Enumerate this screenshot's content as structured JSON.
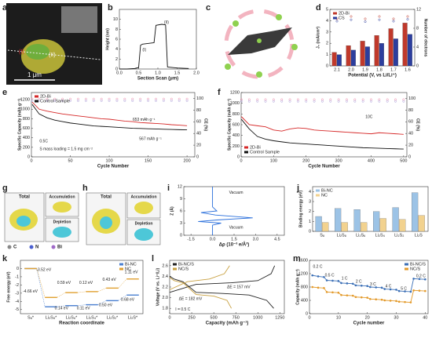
{
  "images": [
    {
      "label": "a",
      "texts": [
        "1 μm",
        "(I)",
        "(II)"
      ]
    },
    {
      "label": "c"
    },
    {
      "label": "g",
      "texts": [
        "Total",
        "Accumulation",
        "Depletion",
        "C",
        "N",
        "Bi"
      ]
    },
    {
      "label": "h",
      "texts": [
        "Total",
        "Accumulation",
        "Depletion"
      ]
    }
  ],
  "chart_data": [
    {
      "label": "b",
      "type": "line",
      "xlabel": "Section Scan (μm)",
      "ylabel": "Height (nm)",
      "x": [
        0,
        0.2,
        0.4,
        0.5,
        0.55,
        0.6,
        0.8,
        0.9,
        0.95,
        1.1,
        1.2,
        1.25,
        1.5,
        1.8
      ],
      "series": [
        {
          "color": "#111111",
          "values": [
            0,
            0,
            0.1,
            0.3,
            4.8,
            5.0,
            5.2,
            5.3,
            8.8,
            9.0,
            8.9,
            0.4,
            0.2,
            0.1
          ]
        }
      ],
      "xlim": [
        0,
        2
      ],
      "xticks": [
        {
          "value": 0,
          "label": "0.0"
        },
        {
          "value": 0.5,
          "label": "0.5"
        },
        {
          "value": 1,
          "label": "1.0"
        },
        {
          "value": 1.5,
          "label": "1.5"
        },
        {
          "value": 2,
          "label": "2.0"
        }
      ],
      "ylim": [
        0,
        12
      ],
      "yticks": [
        0,
        2,
        4,
        6,
        8,
        10
      ],
      "annotations": [
        "(I)",
        "(II)"
      ]
    },
    {
      "label": "d",
      "type": "bar",
      "xlabel": "Potential (V, vs Li/Li⁺)",
      "ylabel": "J₀ (mA/cm²)",
      "y2label": "Number of electrons",
      "categories": [
        "2.1",
        "2.0",
        "1.9",
        "1.8",
        "1.7",
        "1.6"
      ],
      "series": [
        {
          "name": "2D-Bi",
          "color": "#c0392b",
          "values": [
            1.2,
            1.8,
            2.2,
            2.7,
            3.3,
            3.8
          ]
        },
        {
          "name": "CS",
          "color": "#2c3e9e",
          "values": [
            1.0,
            1.4,
            1.7,
            2.0,
            2.4,
            2.8
          ]
        },
        {
          "color": "#c0392b",
          "axis": "y2",
          "style": "scatter",
          "values": [
            10,
            10.5,
            10,
            10.5,
            10,
            10.5
          ]
        },
        {
          "color": "#2c3e9e",
          "axis": "y2",
          "style": "scatter",
          "values": [
            9.5,
            9.8,
            9.4,
            9.8,
            9.5,
            9.9
          ]
        }
      ],
      "ylim": [
        0,
        5
      ],
      "yticks": [
        0,
        1,
        2,
        3,
        4,
        5
      ],
      "y2lim": [
        0,
        12
      ],
      "y2ticks": [
        0,
        4,
        8,
        12
      ],
      "legend": "upper left"
    },
    {
      "label": "e",
      "type": "line",
      "xlabel": "Cycle Number",
      "ylabel": "Specific Capacity (mAh g⁻¹)",
      "y2label": "CE (%)",
      "x": [
        1,
        10,
        20,
        30,
        40,
        50,
        60,
        70,
        80,
        90,
        100,
        110,
        120,
        130,
        140,
        150,
        160,
        170,
        180,
        190,
        200
      ],
      "series": [
        {
          "name": "2D-Bi",
          "color": "#d62828",
          "values": [
            1150,
            1000,
            960,
            930,
            900,
            880,
            860,
            840,
            820,
            800,
            790,
            770,
            750,
            740,
            720,
            710,
            700,
            690,
            675,
            665,
            653
          ]
        },
        {
          "name": "Control Sample",
          "color": "#111111",
          "values": [
            1100,
            900,
            820,
            770,
            740,
            710,
            690,
            670,
            650,
            640,
            630,
            620,
            610,
            600,
            595,
            590,
            585,
            580,
            575,
            570,
            567
          ]
        },
        {
          "color": "#f08aa8",
          "axis": "y2",
          "style": "scatter",
          "values": [
            99,
            99,
            99,
            99,
            99,
            99,
            99,
            99,
            99,
            99,
            99,
            99,
            99,
            99,
            99,
            99,
            99,
            99,
            99,
            99,
            99
          ]
        },
        {
          "color": "#a89ad8",
          "axis": "y2",
          "style": "scatter",
          "values": [
            96,
            96,
            96,
            96,
            96,
            96,
            96,
            96,
            96,
            96,
            96,
            96,
            96,
            96,
            96,
            96,
            96,
            96,
            96,
            96,
            96
          ]
        }
      ],
      "xlim": [
        0,
        210
      ],
      "xticks": [
        0,
        50,
        100,
        150,
        200
      ],
      "ylim": [
        0,
        1350
      ],
      "yticks": [
        0,
        200,
        400,
        600,
        800,
        1000,
        1200
      ],
      "y2lim": [
        0,
        110
      ],
      "y2ticks": [
        0,
        20,
        40,
        60,
        80,
        100
      ],
      "legend": "upper left",
      "annotations": [
        "653 mAh g⁻¹",
        "567 mAh g⁻¹",
        "0.5C",
        "S mass loading = 1.5 mg cm⁻²"
      ]
    },
    {
      "label": "f",
      "type": "line",
      "xlabel": "Cycle Number",
      "ylabel": "Specific Capacity (mAh g⁻¹)",
      "y2label": "CE (%)",
      "x": [
        1,
        25,
        50,
        75,
        100,
        125,
        150,
        175,
        200,
        225,
        250,
        275,
        300,
        325,
        350,
        375,
        400,
        425,
        450,
        475,
        500
      ],
      "series": [
        {
          "name": "2D-Bi",
          "color": "#d62828",
          "values": [
            750,
            600,
            580,
            560,
            500,
            480,
            520,
            540,
            530,
            500,
            490,
            480,
            470,
            460,
            450,
            440,
            430,
            450,
            440,
            430,
            420
          ]
        },
        {
          "name": "Control Sample",
          "color": "#111111",
          "values": [
            700,
            520,
            380,
            330,
            300,
            280,
            260,
            250,
            240,
            230,
            220,
            210,
            200,
            190,
            180,
            170,
            165,
            160,
            155,
            150,
            145
          ]
        },
        {
          "color": "#f08aa8",
          "axis": "y2",
          "style": "scatter",
          "values": [
            98,
            98,
            98,
            98,
            98,
            98,
            98,
            98,
            98,
            98,
            98,
            98,
            98,
            98,
            98,
            98,
            98,
            98,
            98,
            98,
            98
          ]
        },
        {
          "color": "#a89ad8",
          "axis": "y2",
          "style": "scatter",
          "values": [
            95,
            95,
            95,
            95,
            95,
            95,
            95,
            95,
            95,
            95,
            95,
            95,
            95,
            95,
            95,
            95,
            95,
            95,
            95,
            95,
            95
          ]
        }
      ],
      "xlim": [
        0,
        510
      ],
      "xticks": [
        0,
        100,
        200,
        300,
        400,
        500
      ],
      "ylim": [
        0,
        1200
      ],
      "yticks": [
        0,
        200,
        400,
        600,
        800,
        1000,
        1200
      ],
      "y2lim": [
        0,
        110
      ],
      "y2ticks": [
        0,
        20,
        40,
        60,
        80,
        100
      ],
      "legend": "lower left",
      "annotations": [
        "10C"
      ]
    },
    {
      "label": "i",
      "type": "line",
      "xlabel": "Δρ (10⁻³ e/Å³)",
      "ylabel": "Z (Å)",
      "x": [
        0,
        0,
        0.6,
        -1.0,
        0.4,
        2.8,
        0.2,
        -0.8,
        0.3,
        0,
        0
      ],
      "series": [
        {
          "color": "#2a6fdb",
          "values": [
            0,
            2.5,
            3,
            3.4,
            3.8,
            4.3,
            5,
            5.6,
            6,
            7,
            12
          ]
        }
      ],
      "xlim": [
        -2,
        5
      ],
      "xticks": [
        {
          "value": -1.5,
          "label": "-1.5"
        },
        {
          "value": 0,
          "label": "0.0"
        },
        {
          "value": 1.5,
          "label": "1.5"
        },
        {
          "value": 3,
          "label": "3.0"
        },
        {
          "value": 4.5,
          "label": "4.5"
        }
      ],
      "ylim": [
        0,
        12
      ],
      "yticks": [
        0,
        3,
        6,
        9,
        12
      ],
      "annotations": [
        "Vacuum",
        "Vacuum"
      ]
    },
    {
      "label": "j",
      "type": "bar",
      "ylabel": "Binding energy (eV)",
      "categories": [
        "S₈",
        "Li₂S₈",
        "Li₂S₆",
        "Li₂S₄",
        "Li₂S₂",
        "Li₂S"
      ],
      "series": [
        {
          "name": "Bi-NC",
          "color": "#9cc3e6",
          "values": [
            1.5,
            2.3,
            2.2,
            2.0,
            2.4,
            3.9
          ]
        },
        {
          "name": "NC",
          "color": "#f2d28f",
          "values": [
            0.9,
            0.9,
            0.9,
            1.3,
            1.2,
            1.6
          ]
        }
      ],
      "ylim": [
        0,
        4.5
      ],
      "yticks": [
        0,
        1,
        2,
        3,
        4
      ],
      "legend": "upper left"
    },
    {
      "label": "k",
      "type": "step",
      "xlabel": "Reaction coordinate",
      "ylabel": "Free energy (eV)",
      "categories": [
        "S₈*",
        "Li₂S₈*",
        "Li₂S₆*",
        "Li₂S₄*",
        "Li₂S₂*",
        "Li₂S*"
      ],
      "series": [
        {
          "name": "Bi-NC",
          "color": "#4a7fd0",
          "values": [
            0,
            -4.66,
            -4.52,
            -4.41,
            -3.91,
            -3.23
          ]
        },
        {
          "name": "NC",
          "color": "#e0a030",
          "values": [
            0,
            -3.52,
            -2.93,
            -2.81,
            -2.38,
            -1.27
          ]
        }
      ],
      "ylim": [
        -5.5,
        1
      ],
      "yticks": [
        -5,
        -4,
        -3,
        -2,
        -1,
        0
      ],
      "legend": "upper right",
      "annotations": [
        "-3.52 eV",
        "-4.66 eV",
        "0.14 eV",
        "0.11 eV",
        "0.50 eV",
        "0.68 eV",
        "0.59 eV",
        "0.12 eV",
        "0.43 eV",
        "1.11 eV"
      ]
    },
    {
      "label": "l",
      "type": "line",
      "xlabel": "Capacity (mAh g⁻¹)",
      "ylabel": "Voltage (V vs. Li⁺/Li)",
      "series": [
        {
          "name": "Bi-NC/S",
          "color": "#222222",
          "x": [
            0,
            50,
            150,
            300,
            600,
            900,
            1100,
            1180,
            null,
            0,
            300,
            700,
            1000,
            1150,
            1190
          ],
          "values": [
            2.4,
            2.35,
            2.3,
            2.1,
            2.08,
            2.05,
            1.95,
            1.8,
            null,
            2.1,
            2.25,
            2.28,
            2.32,
            2.45,
            2.6
          ]
        },
        {
          "name": "NC/S",
          "color": "#c8a040",
          "x": [
            0,
            50,
            150,
            300,
            500,
            650,
            700,
            null,
            0,
            200,
            450,
            620,
            680
          ],
          "values": [
            2.38,
            2.32,
            2.28,
            2.06,
            2.03,
            1.95,
            1.8,
            null,
            2.15,
            2.3,
            2.35,
            2.45,
            2.6
          ]
        }
      ],
      "xlim": [
        0,
        1300
      ],
      "xticks": [
        0,
        250,
        500,
        750,
        1000,
        1250
      ],
      "ylim": [
        1.7,
        2.7
      ],
      "yticks": [
        1.8,
        {
          "value": 2,
          "label": "2.0"
        },
        2.2,
        2.4,
        2.6
      ],
      "legend": "upper left",
      "annotations": [
        "ΔE = 182 mV",
        "ΔE = 157 mV",
        "I = 0.5 C"
      ]
    },
    {
      "label": "m",
      "type": "line",
      "xlabel": "Cycle number",
      "ylabel": "Capacity (mAh g⁻¹)",
      "x": [
        1,
        3,
        5,
        6,
        8,
        10,
        11,
        13,
        15,
        16,
        18,
        20,
        21,
        23,
        25,
        26,
        28,
        30,
        31,
        33,
        35,
        36,
        38,
        40
      ],
      "series": [
        {
          "name": "Bi-NC/S",
          "color": "#3b6fb6",
          "markers": true,
          "values": [
            1150,
            1120,
            1100,
            1000,
            990,
            980,
            920,
            910,
            900,
            850,
            840,
            830,
            800,
            790,
            780,
            740,
            730,
            720,
            680,
            670,
            660,
            1050,
            1040,
            1030
          ]
        },
        {
          "name": "NC/S",
          "color": "#e39a2b",
          "markers": true,
          "values": [
            800,
            780,
            770,
            650,
            640,
            630,
            560,
            550,
            540,
            500,
            490,
            480,
            440,
            430,
            420,
            400,
            390,
            380,
            360,
            350,
            340,
            700,
            690,
            680
          ]
        }
      ],
      "xlim": [
        0,
        41
      ],
      "xticks": [
        0,
        10,
        20,
        30,
        40
      ],
      "ylim": [
        0,
        1600
      ],
      "yticks": [
        0,
        400,
        800,
        1200,
        1600
      ],
      "legend": "upper right",
      "annotations": [
        "0.2 C",
        "0.5 C",
        "1 C",
        "2 C",
        "3 C",
        "4 C",
        "5 C",
        "0.2 C"
      ]
    }
  ]
}
